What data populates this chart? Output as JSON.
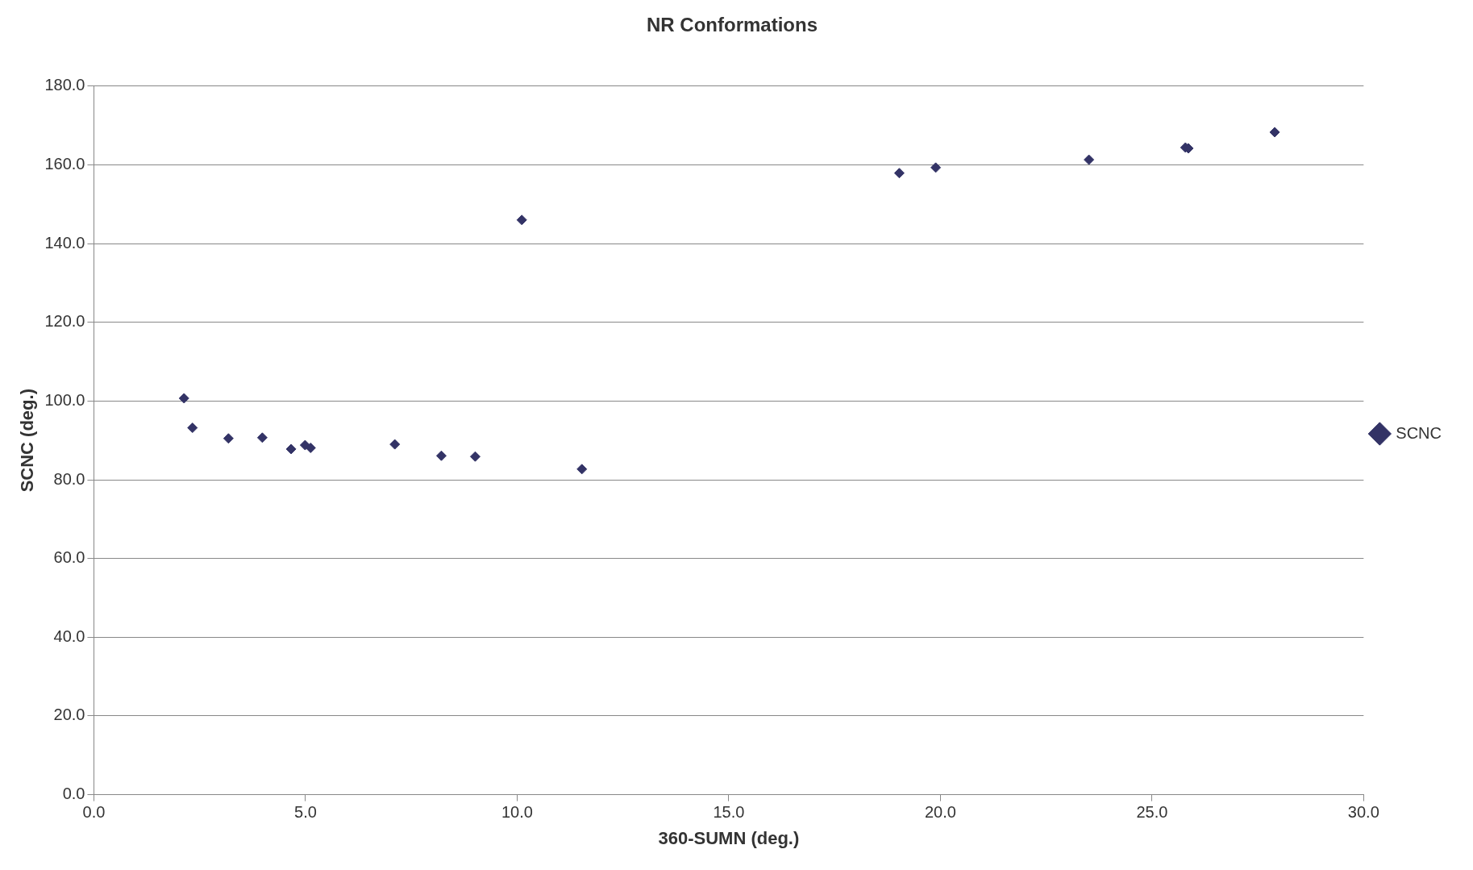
{
  "chart_data": {
    "type": "scatter",
    "title": "NR Conformations",
    "xlabel": "360-SUMN (deg.)",
    "ylabel": "SCNC (deg.)",
    "series": [
      {
        "name": "SCNC",
        "color": "#333366",
        "x": [
          2.13,
          2.33,
          3.18,
          3.98,
          4.66,
          4.99,
          5.12,
          7.11,
          8.21,
          9.01,
          10.11,
          11.53,
          19.03,
          19.89,
          23.51,
          25.79,
          25.86,
          27.9
        ],
        "values": [
          100.7,
          93.2,
          90.5,
          90.7,
          87.8,
          88.8,
          88.1,
          89.0,
          86.1,
          85.9,
          146.0,
          82.7,
          157.9,
          159.3,
          161.3,
          164.4,
          164.2,
          168.3
        ]
      }
    ],
    "xlim": [
      0,
      30
    ],
    "xticks": [
      {
        "value": 0,
        "label": "0.0"
      },
      {
        "value": 5,
        "label": "5.0"
      },
      {
        "value": 10,
        "label": "10.0"
      },
      {
        "value": 15,
        "label": "15.0"
      },
      {
        "value": 20,
        "label": "20.0"
      },
      {
        "value": 25,
        "label": "25.0"
      },
      {
        "value": 30,
        "label": "30.0"
      }
    ],
    "ylim": [
      0,
      180
    ],
    "yticks": [
      {
        "value": 0,
        "label": "0.0"
      },
      {
        "value": 20,
        "label": "20.0"
      },
      {
        "value": 40,
        "label": "40.0"
      },
      {
        "value": 60,
        "label": "60.0"
      },
      {
        "value": 80,
        "label": "80.0"
      },
      {
        "value": 100,
        "label": "100.0"
      },
      {
        "value": 120,
        "label": "120.0"
      },
      {
        "value": 140,
        "label": "140.0"
      },
      {
        "value": 160,
        "label": "160.0"
      },
      {
        "value": 180,
        "label": "180.0"
      }
    ],
    "grid": "y",
    "legend": "right",
    "marker": "diamond"
  }
}
